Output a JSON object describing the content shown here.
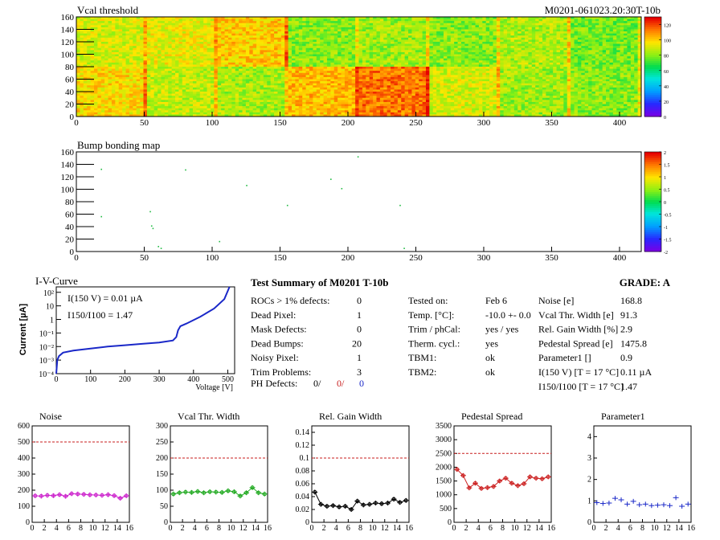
{
  "header": {
    "module_id": "M0201-061023.20:30T-10b"
  },
  "colors": {
    "line_blue": "#1a28c8",
    "ref_red": "#c81e1e"
  },
  "vcal_map": {
    "title": "Vcal threshold",
    "x_ticks": [
      "0",
      "50",
      "100",
      "150",
      "200",
      "250",
      "300",
      "350",
      "400"
    ],
    "y_ticks": [
      "0",
      "20",
      "40",
      "60",
      "80",
      "100",
      "120",
      "140",
      "160"
    ],
    "palette_ticks": [
      "0",
      "20",
      "40",
      "60",
      "80",
      "100",
      "120"
    ]
  },
  "bump_map": {
    "title": "Bump bonding map",
    "x_ticks": [
      "0",
      "50",
      "100",
      "150",
      "200",
      "250",
      "300",
      "350",
      "400"
    ],
    "y_ticks": [
      "0",
      "20",
      "40",
      "60",
      "80",
      "100",
      "120",
      "140",
      "160"
    ],
    "palette_ticks": [
      "-2",
      "-1.5",
      "-1",
      "-0.5",
      "0",
      "0.5",
      "1",
      "1.5",
      "2"
    ]
  },
  "iv_curve": {
    "title": "I-V-Curve",
    "ylabel": "Current [µA]",
    "xlabel": "Voltage [V]",
    "x_ticks": [
      "0",
      "100",
      "200",
      "300",
      "400",
      "500"
    ],
    "y_ticks": [
      "10⁻⁴",
      "10⁻³",
      "10⁻²",
      "10⁻¹",
      "1",
      "10",
      "10²"
    ],
    "annot1": "I(150 V) = 0.01 µA",
    "annot2": "I150/I100 = 1.47"
  },
  "summary": {
    "title": "Test Summary of M0201    T-10b",
    "grade": "GRADE:  A",
    "left_rows": [
      {
        "label": "ROCs > 1% defects:",
        "value": "0"
      },
      {
        "label": "Dead Pixel:",
        "value": "1"
      },
      {
        "label": "Mask Defects:",
        "value": "0"
      },
      {
        "label": "Dead Bumps:",
        "value": "20"
      },
      {
        "label": "Noisy Pixel:",
        "value": "1"
      },
      {
        "label": "Trim Problems:",
        "value": "3"
      }
    ],
    "ph_label": "PH Defects:",
    "ph_values": [
      "0/",
      "0/",
      "0"
    ],
    "mid_rows": [
      {
        "label": "Tested on:",
        "value": "Feb 6"
      },
      {
        "label": "Temp. [°C]:",
        "value": "-10.0 +- 0.0"
      },
      {
        "label": "Trim / phCal:",
        "value": "yes / yes"
      },
      {
        "label": "Therm. cycl.:",
        "value": "yes"
      },
      {
        "label": "TBM1:",
        "value": "ok"
      },
      {
        "label": "TBM2:",
        "value": "ok"
      }
    ],
    "right_rows": [
      {
        "label": "Noise [e]",
        "value": "168.8"
      },
      {
        "label": "Vcal Thr. Width [e]",
        "value": "91.3"
      },
      {
        "label": "Rel. Gain Width [%]",
        "value": "2.9"
      },
      {
        "label": "Pedestal Spread [e]",
        "value": "1475.8"
      },
      {
        "label": "Parameter1 []",
        "value": "0.9"
      },
      {
        "label": "I(150 V) [T = 17 °C]",
        "value": "0.11 µA"
      },
      {
        "label": "I150/I100  [T = 17 °C]",
        "value": "1.47"
      }
    ]
  },
  "chart_data": [
    {
      "type": "scatter",
      "title": "Noise",
      "x": [
        0,
        1,
        2,
        3,
        4,
        5,
        6,
        7,
        8,
        9,
        10,
        11,
        12,
        13,
        14,
        15
      ],
      "values": [
        165,
        163,
        168,
        166,
        172,
        162,
        178,
        176,
        174,
        171,
        170,
        168,
        172,
        166,
        150,
        165
      ],
      "ref": 500,
      "ylim": [
        0,
        600
      ],
      "y_ticks": [
        0,
        100,
        200,
        300,
        400,
        500,
        600
      ],
      "color": "#cc22cc"
    },
    {
      "type": "scatter",
      "title": "Vcal Thr. Width",
      "x": [
        0,
        1,
        2,
        3,
        4,
        5,
        6,
        7,
        8,
        9,
        10,
        11,
        12,
        13,
        14,
        15
      ],
      "values": [
        88,
        92,
        94,
        93,
        96,
        92,
        95,
        94,
        93,
        98,
        95,
        82,
        92,
        108,
        92,
        88
      ],
      "ref": 200,
      "ylim": [
        0,
        300
      ],
      "y_ticks": [
        0,
        50,
        100,
        150,
        200,
        250,
        300
      ],
      "color": "#22aa22"
    },
    {
      "type": "scatter",
      "title": "Rel. Gain Width",
      "x": [
        0,
        1,
        2,
        3,
        4,
        5,
        6,
        7,
        8,
        9,
        10,
        11,
        12,
        13,
        14,
        15
      ],
      "values": [
        0.047,
        0.028,
        0.025,
        0.026,
        0.024,
        0.025,
        0.02,
        0.033,
        0.027,
        0.028,
        0.03,
        0.029,
        0.03,
        0.036,
        0.031,
        0.034
      ],
      "ref": 0.1,
      "ylim": [
        0,
        0.15
      ],
      "y_ticks": [
        0,
        0.02,
        0.04,
        0.06,
        0.08,
        0.1,
        0.12,
        0.14
      ],
      "color": "#000000"
    },
    {
      "type": "scatter",
      "title": "Pedestal Spread",
      "x": [
        0,
        1,
        2,
        3,
        4,
        5,
        6,
        7,
        8,
        9,
        10,
        11,
        12,
        13,
        14,
        15
      ],
      "values": [
        1920,
        1700,
        1250,
        1420,
        1230,
        1260,
        1300,
        1500,
        1600,
        1420,
        1330,
        1400,
        1650,
        1600,
        1580,
        1650
      ],
      "ref": 2500,
      "ylim": [
        0,
        3500
      ],
      "y_ticks": [
        0,
        500,
        1000,
        1500,
        2000,
        2500,
        3000,
        3500
      ],
      "color": "#cc2222"
    },
    {
      "type": "scatter",
      "title": "Parameter1",
      "x": [
        0,
        1,
        2,
        3,
        4,
        5,
        6,
        7,
        8,
        9,
        10,
        11,
        12,
        13,
        14,
        15
      ],
      "values": [
        0.92,
        0.88,
        0.9,
        1.12,
        1.05,
        0.85,
        0.98,
        0.82,
        0.85,
        0.78,
        0.8,
        0.82,
        0.78,
        1.15,
        0.75,
        0.85
      ],
      "ref": null,
      "ylim": [
        0,
        4.5
      ],
      "y_ticks": [
        0,
        1,
        2,
        3,
        4
      ],
      "color": "#1a28c8"
    }
  ],
  "mini_x_ticks": [
    "0",
    "2",
    "4",
    "6",
    "8",
    "10",
    "12",
    "14",
    "16"
  ]
}
